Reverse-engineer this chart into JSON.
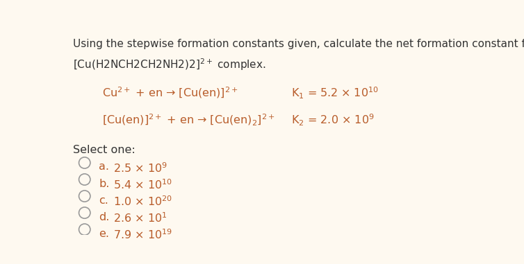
{
  "background_color": "#fef9f0",
  "text_color": "#333333",
  "orange_color": "#b85c2a",
  "figsize": [
    7.54,
    3.81
  ],
  "dpi": 100,
  "title_line1": "Using the stepwise formation constants given, calculate the net formation constant for the",
  "title_line2_pre": "[Cu(H2NCH2CH2NH2)2]",
  "title_line2_sup": "2+",
  "title_line2_post": " complex.",
  "eq1_text": "Cu$^{2+}$ + en → [Cu(en)]$^{2+}$",
  "eq1_k": "K$_1$ = 5.2 × 10$^{10}$",
  "eq2_text": "[Cu(en)]$^{2+}$ + en → [Cu(en)$_2$]$^{2+}$",
  "eq2_k": "K$_2$ = 2.0 × 10$^{9}$",
  "select_one": "Select one:",
  "options": [
    {
      "label": "a.",
      "value": "2.5 × 10$^{9}$"
    },
    {
      "label": "b.",
      "value": "5.4 × 10$^{10}$"
    },
    {
      "label": "c.",
      "value": "1.0 × 10$^{20}$"
    },
    {
      "label": "d.",
      "value": "2.6 × 10$^{1}$"
    },
    {
      "label": "e.",
      "value": "7.9 × 10$^{19}$"
    }
  ]
}
